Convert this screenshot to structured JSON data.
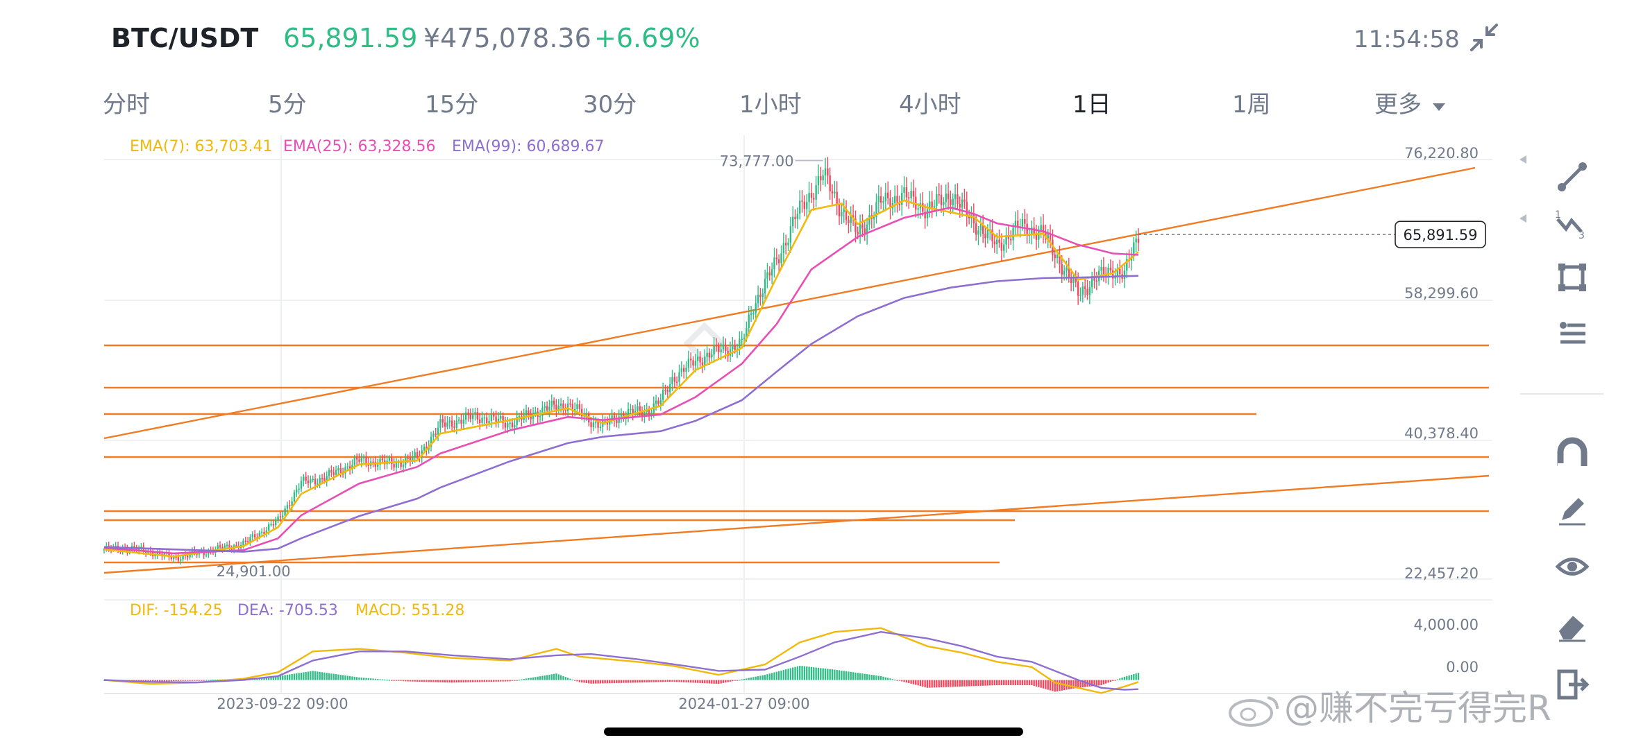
{
  "header": {
    "pair": "BTC/USDT",
    "price": "65,891.59",
    "price_cny": "¥475,078.36",
    "change": "+6.69%",
    "clock": "11:54:58",
    "collapse_icon": "collapse-arrows-icon"
  },
  "tabs": [
    {
      "label": "分时",
      "active": false
    },
    {
      "label": "5分",
      "active": false
    },
    {
      "label": "15分",
      "active": false
    },
    {
      "label": "30分",
      "active": false
    },
    {
      "label": "1小时",
      "active": false
    },
    {
      "label": "4小时",
      "active": false
    },
    {
      "label": "1日",
      "active": true
    },
    {
      "label": "1周",
      "active": false
    },
    {
      "label": "更多",
      "active": false,
      "dropdown": true
    }
  ],
  "toolbar": [
    {
      "name": "trendline-tool-icon"
    },
    {
      "name": "fibonacci-tool-icon"
    },
    {
      "name": "rectangle-tool-icon"
    },
    {
      "name": "text-lines-tool-icon"
    },
    {
      "name": "magnet-icon"
    },
    {
      "name": "pencil-icon"
    },
    {
      "name": "eye-icon"
    },
    {
      "name": "eraser-icon"
    },
    {
      "name": "exit-icon"
    }
  ],
  "watermark": {
    "text": "@赚不完亏得完R"
  },
  "colors": {
    "up": "#2ebd85",
    "down": "#f6465d",
    "ema7": "#f0b90b",
    "ema25": "#e84fb5",
    "ema99": "#8e6fd1",
    "drawing": "#f07b22",
    "grid": "#eef0f3",
    "axis_text": "#707a8a"
  },
  "chart_data": [
    {
      "type": "candlestick",
      "interval": "1日",
      "ema_legend": [
        {
          "label": "EMA(7): 63,703.41",
          "color": "#f0b90b"
        },
        {
          "label": "EMA(25): 63,328.56",
          "color": "#e84fb5"
        },
        {
          "label": "EMA(99): 60,689.67",
          "color": "#8e6fd1"
        }
      ],
      "y_axis_labels": [
        "76,220.80",
        "58,299.60",
        "40,378.40",
        "22,457.20"
      ],
      "x_axis_labels": [
        "2023-09-22 09:00",
        "2024-01-27 09:00"
      ],
      "annotations": {
        "high": "73,777.00",
        "low": "24,901.00",
        "last_price": "65,891.59"
      },
      "ylim": [
        22457.2,
        76220.8
      ],
      "price_path": [
        [
          0,
          26200
        ],
        [
          10,
          26400
        ],
        [
          20,
          25900
        ],
        [
          30,
          25100
        ],
        [
          45,
          26000
        ],
        [
          60,
          26900
        ],
        [
          75,
          29800
        ],
        [
          85,
          34600
        ],
        [
          95,
          35200
        ],
        [
          110,
          37400
        ],
        [
          125,
          37000
        ],
        [
          135,
          37800
        ],
        [
          145,
          41800
        ],
        [
          160,
          43000
        ],
        [
          175,
          42100
        ],
        [
          190,
          43900
        ],
        [
          200,
          44500
        ],
        [
          210,
          42400
        ],
        [
          215,
          41700
        ],
        [
          222,
          43100
        ],
        [
          235,
          43800
        ],
        [
          240,
          44900
        ],
        [
          245,
          47700
        ],
        [
          255,
          50000
        ],
        [
          265,
          51300
        ],
        [
          275,
          52000
        ],
        [
          280,
          57000
        ],
        [
          290,
          62500
        ],
        [
          298,
          68000
        ],
        [
          305,
          71200
        ],
        [
          310,
          73500
        ],
        [
          318,
          69000
        ],
        [
          325,
          66000
        ],
        [
          335,
          70000
        ],
        [
          345,
          70800
        ],
        [
          355,
          69000
        ],
        [
          365,
          71000
        ],
        [
          375,
          67500
        ],
        [
          385,
          64500
        ],
        [
          395,
          67000
        ],
        [
          405,
          66000
        ],
        [
          415,
          61000
        ],
        [
          420,
          58500
        ],
        [
          428,
          60400
        ],
        [
          435,
          61500
        ],
        [
          440,
          60800
        ],
        [
          446,
          65891.59
        ]
      ],
      "ema_paths": {
        "ema7": [
          [
            0,
            26200
          ],
          [
            30,
            25300
          ],
          [
            60,
            26600
          ],
          [
            75,
            29000
          ],
          [
            85,
            33200
          ],
          [
            110,
            36900
          ],
          [
            135,
            37400
          ],
          [
            145,
            40800
          ],
          [
            175,
            42500
          ],
          [
            200,
            44000
          ],
          [
            215,
            42100
          ],
          [
            240,
            44300
          ],
          [
            255,
            48800
          ],
          [
            275,
            51600
          ],
          [
            290,
            60500
          ],
          [
            305,
            69000
          ],
          [
            318,
            69800
          ],
          [
            325,
            67200
          ],
          [
            345,
            70200
          ],
          [
            355,
            69300
          ],
          [
            375,
            68100
          ],
          [
            385,
            65600
          ],
          [
            405,
            66000
          ],
          [
            420,
            60200
          ],
          [
            435,
            61000
          ],
          [
            446,
            63703.41
          ]
        ],
        "ema25": [
          [
            0,
            26400
          ],
          [
            30,
            25700
          ],
          [
            60,
            26100
          ],
          [
            75,
            27600
          ],
          [
            85,
            30500
          ],
          [
            110,
            34500
          ],
          [
            135,
            36600
          ],
          [
            145,
            38300
          ],
          [
            175,
            41200
          ],
          [
            200,
            42900
          ],
          [
            215,
            42500
          ],
          [
            240,
            43200
          ],
          [
            255,
            45400
          ],
          [
            275,
            49600
          ],
          [
            290,
            54600
          ],
          [
            305,
            61500
          ],
          [
            325,
            65600
          ],
          [
            345,
            68000
          ],
          [
            365,
            69300
          ],
          [
            375,
            68500
          ],
          [
            385,
            67300
          ],
          [
            405,
            66300
          ],
          [
            420,
            64600
          ],
          [
            435,
            63500
          ],
          [
            446,
            63328.56
          ]
        ],
        "ema99": [
          [
            0,
            26500
          ],
          [
            30,
            26200
          ],
          [
            60,
            25900
          ],
          [
            75,
            26300
          ],
          [
            85,
            27600
          ],
          [
            110,
            30400
          ],
          [
            135,
            32600
          ],
          [
            145,
            34000
          ],
          [
            175,
            37300
          ],
          [
            200,
            39600
          ],
          [
            215,
            40400
          ],
          [
            240,
            41100
          ],
          [
            255,
            42400
          ],
          [
            275,
            45000
          ],
          [
            290,
            48600
          ],
          [
            305,
            52100
          ],
          [
            325,
            55600
          ],
          [
            345,
            57900
          ],
          [
            365,
            59200
          ],
          [
            385,
            60000
          ],
          [
            405,
            60400
          ],
          [
            425,
            60500
          ],
          [
            446,
            60689.67
          ]
        ]
      }
    },
    {
      "type": "macd",
      "legend": [
        {
          "label": "DIF: -154.25",
          "color": "#f0b90b"
        },
        {
          "label": "DEA: -705.53",
          "color": "#8e6fd1"
        },
        {
          "label": "MACD: 551.28",
          "color": "#2ebd85"
        }
      ],
      "y_axis_labels": [
        "4,000.00",
        "0.00"
      ],
      "ylim": [
        -1200,
        4300
      ],
      "dif_path": [
        [
          0,
          0
        ],
        [
          20,
          -300
        ],
        [
          40,
          -200
        ],
        [
          60,
          100
        ],
        [
          75,
          600
        ],
        [
          90,
          2200
        ],
        [
          110,
          2400
        ],
        [
          130,
          2100
        ],
        [
          150,
          1700
        ],
        [
          175,
          1500
        ],
        [
          195,
          2400
        ],
        [
          205,
          1800
        ],
        [
          230,
          1400
        ],
        [
          245,
          1100
        ],
        [
          265,
          400
        ],
        [
          285,
          1200
        ],
        [
          300,
          2900
        ],
        [
          315,
          3700
        ],
        [
          335,
          4000
        ],
        [
          355,
          2600
        ],
        [
          370,
          2100
        ],
        [
          385,
          1400
        ],
        [
          400,
          1000
        ],
        [
          410,
          -200
        ],
        [
          420,
          -600
        ],
        [
          430,
          -1000
        ],
        [
          440,
          -500
        ],
        [
          446,
          -154.25
        ]
      ],
      "dea_path": [
        [
          0,
          0
        ],
        [
          20,
          -150
        ],
        [
          40,
          -180
        ],
        [
          60,
          0
        ],
        [
          75,
          300
        ],
        [
          90,
          1500
        ],
        [
          110,
          2200
        ],
        [
          130,
          2200
        ],
        [
          150,
          1900
        ],
        [
          175,
          1600
        ],
        [
          195,
          1900
        ],
        [
          210,
          2000
        ],
        [
          230,
          1600
        ],
        [
          250,
          1100
        ],
        [
          265,
          700
        ],
        [
          285,
          800
        ],
        [
          300,
          1800
        ],
        [
          315,
          2900
        ],
        [
          335,
          3700
        ],
        [
          355,
          3200
        ],
        [
          370,
          2600
        ],
        [
          385,
          1800
        ],
        [
          400,
          1400
        ],
        [
          410,
          700
        ],
        [
          420,
          0
        ],
        [
          430,
          -600
        ],
        [
          440,
          -750
        ],
        [
          446,
          -705.53
        ]
      ]
    }
  ]
}
